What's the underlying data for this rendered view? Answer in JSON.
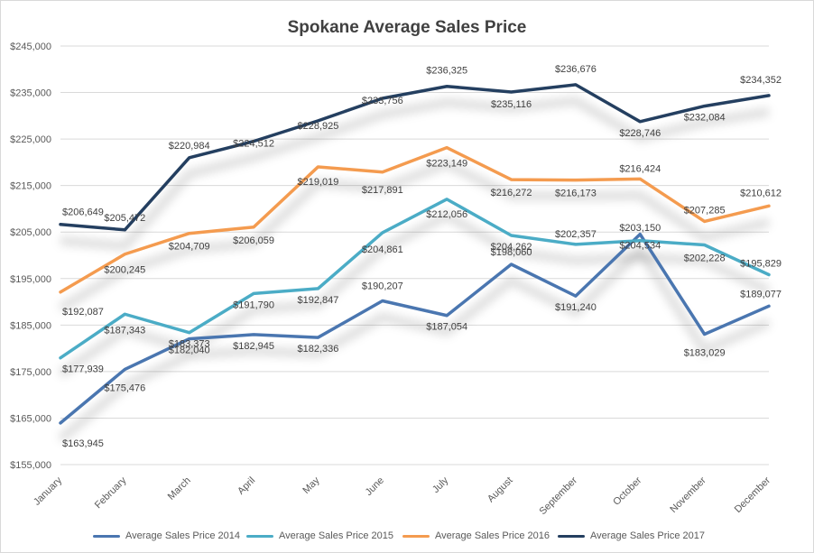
{
  "chart_data": {
    "type": "line",
    "title": "Spokane Average Sales Price",
    "xlabel": "",
    "ylabel": "",
    "categories": [
      "January",
      "February",
      "March",
      "April",
      "May",
      "June",
      "July",
      "August",
      "September",
      "October",
      "November",
      "December"
    ],
    "ylim": [
      155000,
      245000
    ],
    "yticks": [
      155000,
      165000,
      175000,
      185000,
      195000,
      205000,
      215000,
      225000,
      235000,
      245000
    ],
    "ytick_labels": [
      "$155,000",
      "$165,000",
      "$175,000",
      "$185,000",
      "$195,000",
      "$205,000",
      "$215,000",
      "$225,000",
      "$235,000",
      "$245,000"
    ],
    "grid": true,
    "legend_position": "bottom",
    "series": [
      {
        "name": "Average Sales Price  2014",
        "color": "#4a76b0",
        "values": [
          163945,
          175476,
          182040,
          182945,
          182336,
          190207,
          187054,
          198060,
          191240,
          204534,
          183029,
          189077
        ],
        "labels": [
          "$163,945",
          "$175,476",
          "$182,040",
          "$182,945",
          "$182,336",
          "$190,207",
          "$187,054",
          "$198,060",
          "$191,240",
          "$204,534",
          "$183,029",
          "$189,077"
        ]
      },
      {
        "name": "Average Sales Price  2015",
        "color": "#4bacc6",
        "values": [
          177939,
          187343,
          183373,
          191790,
          192847,
          204861,
          212056,
          204262,
          202357,
          203150,
          202228,
          195829
        ],
        "labels": [
          "$177,939",
          "$187,343",
          "$183,373",
          "$191,790",
          "$192,847",
          "$204,861",
          "$212,056",
          "$204,262",
          "$202,357",
          "$203,150",
          "$202,228",
          "$195,829"
        ]
      },
      {
        "name": "Average Sales Price  2016",
        "color": "#f49b4f",
        "values": [
          192087,
          200245,
          204709,
          206059,
          219019,
          217891,
          223149,
          216272,
          216173,
          216424,
          207285,
          210612
        ],
        "labels": [
          "$192,087",
          "$200,245",
          "$204,709",
          "$206,059",
          "$219,019",
          "$217,891",
          "$223,149",
          "$216,272",
          "$216,173",
          "$216,424",
          "$207,285",
          "$210,612"
        ]
      },
      {
        "name": "Average Sales Price  2017",
        "color": "#243f60",
        "values": [
          206649,
          205472,
          220984,
          224512,
          228925,
          233756,
          236325,
          235116,
          236676,
          228746,
          232084,
          234352
        ],
        "labels": [
          "$206,649",
          "$205,472",
          "$220,984",
          "$224,512",
          "$228,925",
          "$233,756",
          "$236,325",
          "$235,116",
          "$236,676",
          "$228,746",
          "$232,084",
          "$234,352"
        ]
      }
    ]
  }
}
